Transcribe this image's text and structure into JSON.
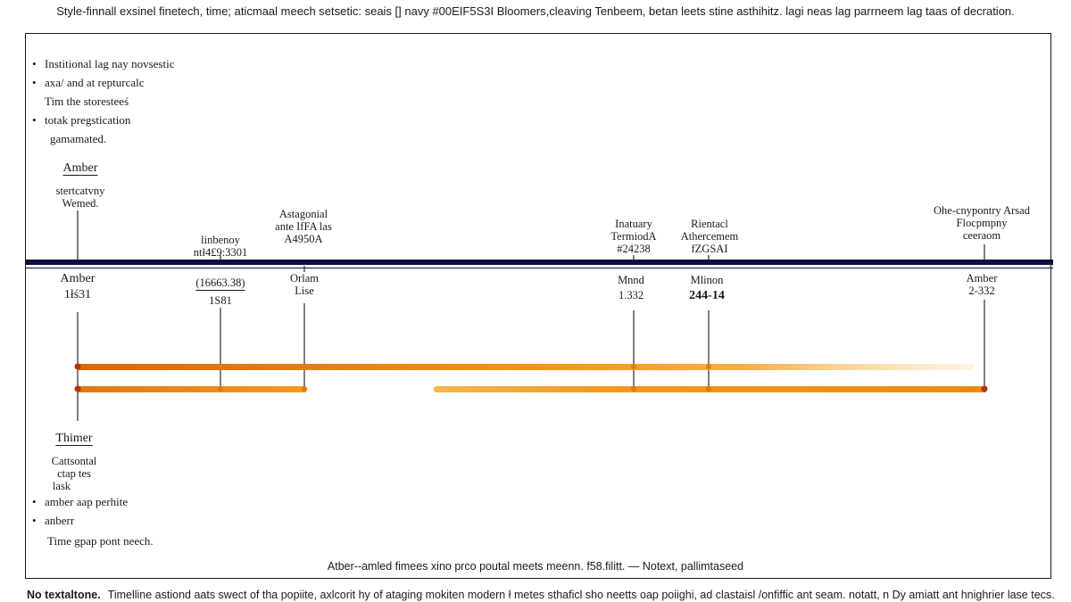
{
  "top_caption": "Style-finnall exsinel finetech, time; aticmaal meech setsetic: seais  []  navy #00EIF5S3I Bloomers,cleaving Tenbeem, betan leets stine asthihitz. lagi neas lag parrneem lag taas of decration.",
  "top_notes": [
    {
      "bullet": true,
      "text": "Institional lag nay novsestic"
    },
    {
      "bullet": true,
      "text": "axa/ and at repturcalc"
    },
    {
      "bullet": false,
      "text": "Tim the storesteeś"
    },
    {
      "bullet": true,
      "text": "totak pregstication"
    },
    {
      "bullet": false,
      "text": "gamamated."
    }
  ],
  "left_top": {
    "title": "Amber",
    "l1": "stertcatvny",
    "l2": "Wemed."
  },
  "left_bottom": {
    "title": "Thimer",
    "l1": "Cattsontal",
    "l2": "ctap tes",
    "l3": "lask"
  },
  "bottom_notes": [
    {
      "bullet": true,
      "text": "amber aap perhite"
    },
    {
      "bullet": true,
      "text": "anberr"
    },
    {
      "bullet": false,
      "text": "Time gpap pont neech."
    }
  ],
  "milestones": [
    {
      "a1": "",
      "a2": "",
      "a3": "",
      "b1": "Amber",
      "b2": "1łś31"
    },
    {
      "a1": "",
      "a2": "linbenoy",
      "a3": "ntł4£9:3301",
      "b1": "(16663.38)",
      "b2": "1S81"
    },
    {
      "a1": "Astagonial",
      "a2": "ante IfFA las",
      "a3": "A4950A",
      "b1": "Orlam",
      "b2": "Lise"
    },
    {
      "a1": "Inatuary",
      "a2": "TermiodA",
      "a3": "#24238",
      "b1": "Mnnd",
      "b2": "1.332"
    },
    {
      "a1": "",
      "a2": "Rientacl",
      "a3": "Athercemem",
      "a4": "fZGSAI",
      "b1": "Mlinon",
      "b2": "244-14"
    },
    {
      "a1": "Ohe-cnypontry Arsad",
      "a2": "Flocpmpny",
      "a3": "ceeraom",
      "b1": "Amber",
      "b2": "2-332"
    }
  ],
  "bottom_caption": "Atber--amled fimees xino prco poutal meets meenn. f58.filitt. — Notext, pallimtaseed",
  "footer": {
    "bold": "No textaltone.",
    "text": "Timelline astiond aats swect of tha popiite,  axlcorit hy of ataging mokiten modern ł metes sthaficl sho neetts oap poiighi, ad clastaisl /onfiffic ant seam. notatt, n Dy amiatt ant hnighrier lase tecs."
  },
  "colors": {
    "navy": "#0d1140",
    "orange_dark": "#e07a10",
    "orange": "#f29a1c",
    "orange_light": "#f6c87a",
    "marker_red": "#b5320c"
  }
}
